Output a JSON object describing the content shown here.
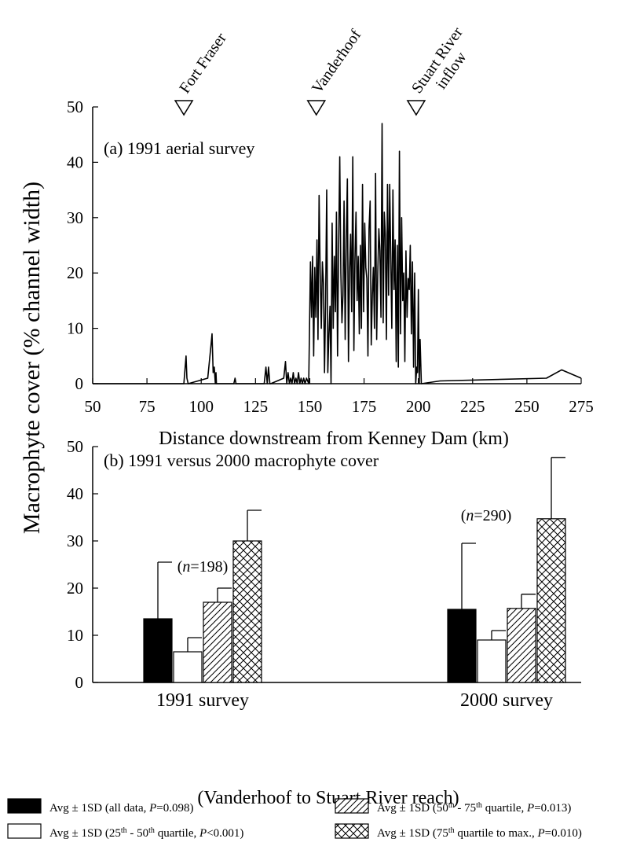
{
  "shared_ylabel": "Macrophyte cover (% channel width)",
  "chart_data": [
    {
      "type": "line",
      "panel": "a",
      "title": "(a) 1991 aerial survey",
      "xlabel": "Distance downstream from Kenney Dam (km)",
      "ylabel": "Macrophyte cover (% channel width)",
      "xlim": [
        50,
        275
      ],
      "ylim": [
        0,
        50
      ],
      "xticks": [
        50,
        75,
        100,
        125,
        150,
        175,
        200,
        225,
        250,
        275
      ],
      "yticks": [
        0,
        10,
        20,
        30,
        40,
        50
      ],
      "markers": [
        {
          "label_lines": [
            "Fort Fraser"
          ],
          "x": 92
        },
        {
          "label_lines": [
            "Vanderhoof"
          ],
          "x": 153
        },
        {
          "label_lines": [
            "Stuart River",
            "inflow"
          ],
          "x": 199
        }
      ],
      "series": [
        {
          "x": [
            50,
            92,
            93,
            93.4,
            94,
            103,
            104.5,
            105,
            105.5,
            106,
            106.5,
            106.8,
            107,
            115,
            115.6,
            116,
            129,
            129.8,
            130.4,
            131,
            131.6,
            132,
            138,
            138.8,
            139.4,
            140,
            140.6,
            141.2,
            141.8,
            142.4,
            143,
            143.6,
            144.2,
            144.8,
            145.4,
            146,
            146.6,
            147.2,
            147.8,
            148.5,
            149.5,
            150.3,
            150.8,
            151.3,
            151.8,
            152.3,
            152.8,
            153.3,
            153.8,
            154.3,
            154.8,
            155.3,
            155.8,
            156.3,
            156.8,
            157.3,
            157.8,
            158.3,
            158.8,
            159.3,
            159.8,
            160.3,
            160.8,
            161.3,
            161.8,
            162.3,
            162.8,
            163.3,
            163.8,
            164.3,
            164.8,
            165.3,
            165.8,
            166.3,
            166.8,
            167.3,
            167.8,
            168.3,
            168.8,
            169.3,
            169.8,
            170.3,
            170.8,
            171.3,
            171.8,
            172.3,
            172.8,
            173.3,
            173.8,
            174.3,
            174.8,
            175.3,
            175.8,
            176.3,
            176.8,
            177.3,
            177.8,
            178.3,
            178.8,
            179.3,
            179.8,
            180.3,
            180.8,
            181.3,
            181.8,
            182.3,
            182.8,
            183.3,
            183.8,
            184.3,
            184.8,
            185.3,
            185.8,
            186.3,
            186.8,
            187.3,
            187.8,
            188.3,
            188.8,
            189.3,
            189.8,
            190.3,
            190.8,
            191.3,
            191.8,
            192.3,
            192.8,
            193.3,
            193.8,
            194.3,
            194.8,
            195.3,
            195.8,
            196.3,
            196.8,
            197.3,
            197.8,
            198.3,
            198.8,
            199.3,
            199.6,
            200,
            200.4,
            200.8,
            201.4,
            210,
            259,
            266,
            275
          ],
          "y": [
            0,
            0,
            5,
            1,
            0,
            1,
            7,
            9,
            2,
            3,
            0,
            2,
            0,
            0,
            1,
            0,
            0,
            3,
            0,
            3,
            0,
            0,
            1,
            4,
            0,
            2,
            0,
            1,
            0,
            2,
            0,
            1,
            0,
            2,
            0,
            1,
            0,
            1,
            0,
            1,
            0,
            22,
            12,
            23,
            5,
            21,
            12,
            26,
            8,
            34,
            20,
            10,
            22,
            18,
            2,
            15,
            35,
            2,
            9,
            14,
            0,
            29,
            10,
            23,
            13,
            31,
            5,
            25,
            41,
            20,
            11,
            16,
            33,
            8,
            26,
            37,
            4,
            20,
            27,
            13,
            41,
            6,
            22,
            31,
            15,
            23,
            9,
            25,
            10,
            36,
            13,
            29,
            21,
            19,
            5,
            28,
            33,
            7,
            16,
            21,
            10,
            38,
            8,
            20,
            28,
            24,
            12,
            47,
            11,
            31,
            27,
            8,
            36,
            16,
            36,
            22,
            10,
            35,
            17,
            26,
            4,
            25,
            3,
            42,
            9,
            30,
            15,
            20,
            4,
            24,
            12,
            19,
            17,
            25,
            9,
            22,
            3,
            20,
            0,
            3,
            2,
            17,
            0,
            8,
            0,
            0.5,
            1,
            2.5,
            1
          ]
        }
      ]
    },
    {
      "type": "bar",
      "panel": "b",
      "title": "(b) 1991 versus 2000 macrophyte cover",
      "xlabel": "(Vanderhoof to Stuart River reach)",
      "ylabel": "Macrophyte cover (% channel width)",
      "ylim": [
        0,
        50
      ],
      "yticks": [
        0,
        10,
        20,
        30,
        40,
        50
      ],
      "categories": [
        "1991 survey",
        "2000 survey"
      ],
      "annotations": [
        {
          "category": "1991 survey",
          "prefix": "(",
          "italic": "n",
          "suffix": "=198)"
        },
        {
          "category": "2000 survey",
          "prefix": "(",
          "italic": "n",
          "suffix": "=290)"
        }
      ],
      "series": [
        {
          "legend_parts": [
            "Avg ± 1SD (all data, ",
            "P",
            "=0.098)"
          ],
          "pattern": "solid-black",
          "values": [
            13.5,
            15.5
          ],
          "sd": [
            12,
            14
          ]
        },
        {
          "legend_parts": [
            "Avg ± 1SD (25",
            "th",
            " - 50",
            "th",
            " quartile, ",
            "P",
            "<0.001)"
          ],
          "pattern": "white",
          "values": [
            6.5,
            9
          ],
          "sd": [
            3,
            2
          ]
        },
        {
          "legend_parts": [
            "Avg ± 1SD (50",
            "th",
            " - 75",
            "th",
            " quartile, ",
            "P",
            "=0.013)"
          ],
          "pattern": "diagonal",
          "values": [
            17,
            15.7
          ],
          "sd": [
            3,
            3
          ]
        },
        {
          "legend_parts": [
            "Avg ± 1SD (75",
            "th",
            " quartile to max., ",
            "P",
            "=0.010)"
          ],
          "pattern": "crosshatch",
          "values": [
            30,
            34.7
          ],
          "sd": [
            6.5,
            13
          ]
        }
      ]
    }
  ]
}
